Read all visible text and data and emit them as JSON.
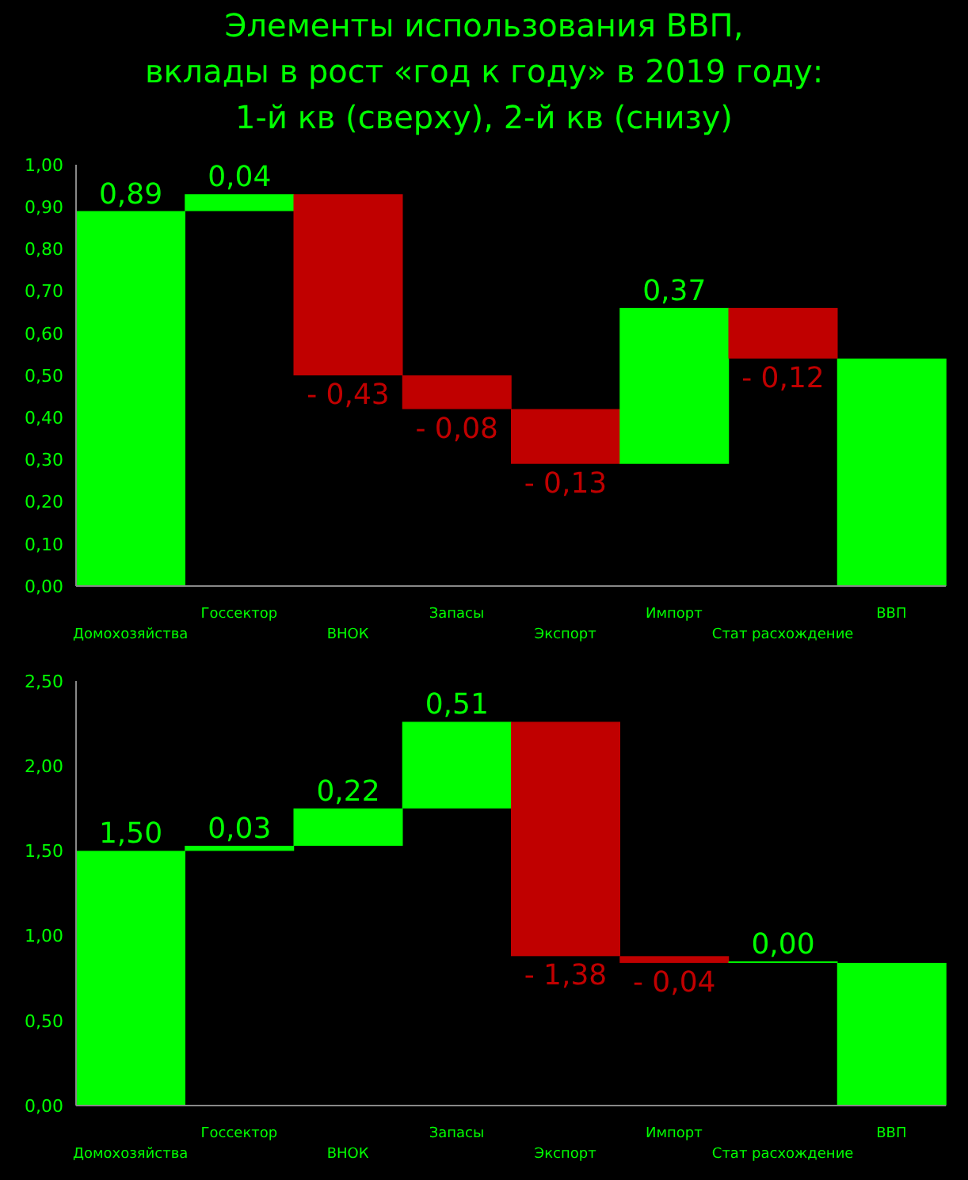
{
  "chart_data": [
    {
      "type": "bar",
      "title": "Элементы использования ВВП,\nвклады в рост «год к году» в 2019 году:\n1-й кв (сверху), 2-й кв (снизу)",
      "categories": [
        "Домохозяйства",
        "Госсектор",
        "ВНОК",
        "Запасы",
        "Экспорт",
        "Импорт",
        "Стат расхождение",
        "ВВП"
      ],
      "values": [
        0.89,
        0.04,
        -0.43,
        -0.08,
        -0.13,
        0.37,
        -0.12,
        0.54
      ],
      "base": [
        0,
        0.89,
        0.93,
        0.5,
        0.42,
        0.29,
        0.66,
        0
      ],
      "colors": [
        "#00ff00",
        "#00ff00",
        "#c00000",
        "#c00000",
        "#c00000",
        "#00ff00",
        "#c00000",
        "#00ff00"
      ],
      "value_labels": [
        "0,89",
        "0,04",
        "- 0,43",
        "- 0,08",
        "- 0,13",
        "0,37",
        "- 0,12",
        null
      ],
      "ylim": [
        0,
        1
      ],
      "yticks": [
        {
          "value": 0,
          "label": "0,00"
        },
        {
          "value": 0.1,
          "label": "0,10"
        },
        {
          "value": 0.2,
          "label": "0,20"
        },
        {
          "value": 0.3,
          "label": "0,30"
        },
        {
          "value": 0.4,
          "label": "0,40"
        },
        {
          "value": 0.5,
          "label": "0,50"
        },
        {
          "value": 0.6,
          "label": "0,60"
        },
        {
          "value": 0.7,
          "label": "0,70"
        },
        {
          "value": 0.8,
          "label": "0,80"
        },
        {
          "value": 0.9,
          "label": "0,90"
        },
        {
          "value": 1,
          "label": "1,00"
        }
      ],
      "grid": false,
      "legend": false
    },
    {
      "type": "bar",
      "categories": [
        "Домохозяйства",
        "Госсектор",
        "ВНОК",
        "Запасы",
        "Экспорт",
        "Импорт",
        "Стат расхождение",
        "ВВП"
      ],
      "values": [
        1.5,
        0.03,
        0.22,
        0.51,
        -1.38,
        -0.04,
        0,
        0.84
      ],
      "base": [
        0,
        1.5,
        1.53,
        1.75,
        2.26,
        0.88,
        0.84,
        0
      ],
      "colors": [
        "#00ff00",
        "#00ff00",
        "#00ff00",
        "#00ff00",
        "#c00000",
        "#c00000",
        "#00ff00",
        "#00ff00"
      ],
      "value_labels": [
        "1,50",
        "0,03",
        "0,22",
        "0,51",
        "- 1,38",
        "- 0,04",
        "0,00",
        null
      ],
      "ylim": [
        0,
        2.5
      ],
      "yticks": [
        {
          "value": 0,
          "label": "0,00"
        },
        {
          "value": 0.5,
          "label": "0,50"
        },
        {
          "value": 1,
          "label": "1,00"
        },
        {
          "value": 1.5,
          "label": "1,50"
        },
        {
          "value": 2,
          "label": "2,00"
        },
        {
          "value": 2.5,
          "label": "2,50"
        }
      ],
      "grid": false,
      "legend": false
    }
  ]
}
